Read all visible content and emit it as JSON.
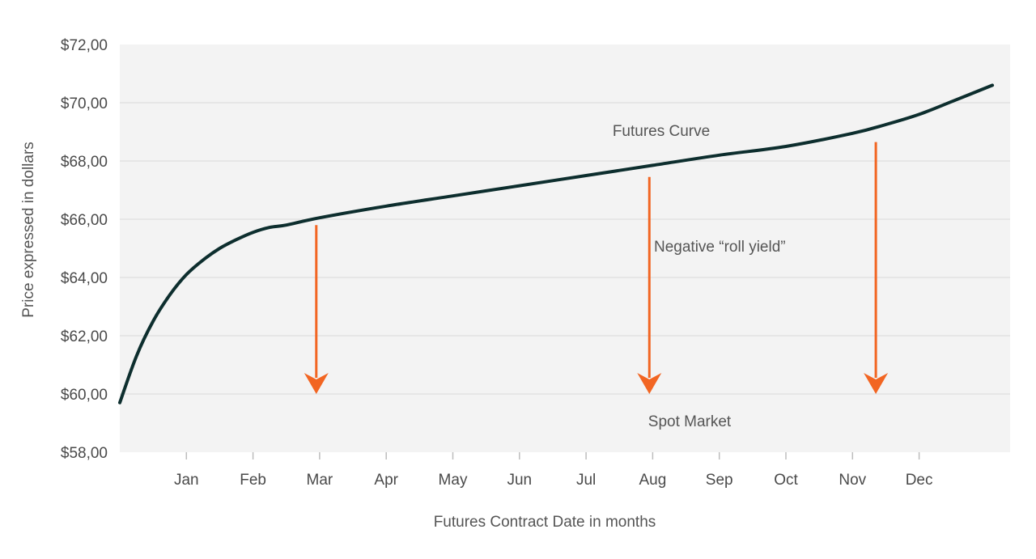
{
  "chart_data": {
    "type": "line",
    "title": "",
    "xlabel": "Futures Contract Date in months",
    "ylabel": "Price expressed in dollars",
    "ylim": [
      58,
      72
    ],
    "yticks": [
      58,
      60,
      62,
      64,
      66,
      68,
      70,
      72
    ],
    "ytick_labels": [
      "$58,00",
      "$60,00",
      "$62,00",
      "$64,00",
      "$66,00",
      "$68,00",
      "$70,00",
      "$72,00"
    ],
    "categories": [
      "Jan",
      "Feb",
      "Mar",
      "Apr",
      "May",
      "Jun",
      "Jul",
      "Aug",
      "Sep",
      "Oct",
      "Nov",
      "Dec"
    ],
    "xlim": [
      0,
      13.4
    ],
    "grid": true,
    "series": [
      {
        "values_xy": [
          [
            0,
            59.7
          ],
          [
            0.25,
            61.3
          ],
          [
            0.5,
            62.5
          ],
          [
            0.75,
            63.4
          ],
          [
            1,
            64.1
          ],
          [
            1.25,
            64.6
          ],
          [
            1.5,
            65.0
          ],
          [
            1.75,
            65.3
          ],
          [
            2,
            65.55
          ],
          [
            2.25,
            65.72
          ],
          [
            2.5,
            65.8
          ],
          [
            3,
            66.05
          ],
          [
            4,
            66.45
          ],
          [
            5,
            66.8
          ],
          [
            6,
            67.15
          ],
          [
            7,
            67.5
          ],
          [
            8,
            67.85
          ],
          [
            9,
            68.2
          ],
          [
            10,
            68.5
          ],
          [
            11,
            68.95
          ],
          [
            11.5,
            69.25
          ],
          [
            12,
            69.6
          ],
          [
            12.5,
            70.05
          ],
          [
            13.1,
            70.6
          ]
        ],
        "color": "#0d2e2e"
      }
    ],
    "arrows": [
      {
        "x": 2.95,
        "from": 65.8,
        "to": 60.0
      },
      {
        "x": 7.95,
        "from": 67.45,
        "to": 60.0
      },
      {
        "x": 11.35,
        "from": 68.65,
        "to": 60.0
      }
    ],
    "arrow_color": "#f26522",
    "annotations": {
      "futures_curve": "Futures Curve",
      "roll_yield": "Negative “roll yield”",
      "spot_market": "Spot Market"
    },
    "colors": {
      "plot_background": "#f3f3f3",
      "gridline": "#d9d9d9",
      "curve": "#0d2e2e",
      "arrow": "#f26522"
    }
  }
}
